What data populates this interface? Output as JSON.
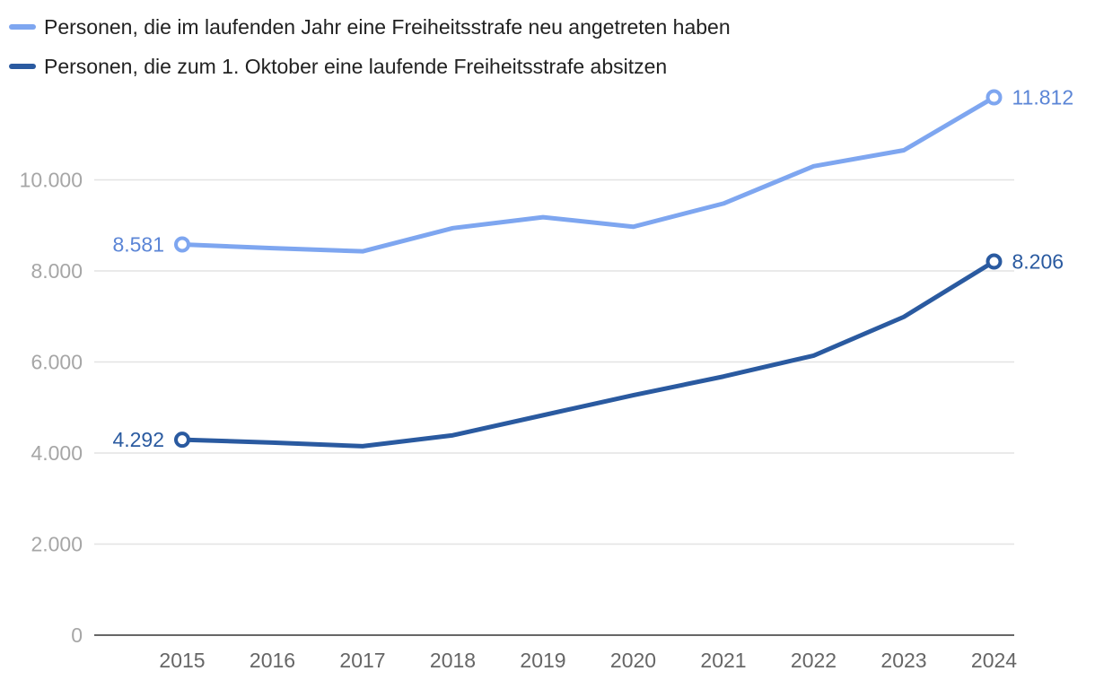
{
  "chart_data": {
    "type": "line",
    "categories": [
      "2015",
      "2016",
      "2017",
      "2018",
      "2019",
      "2020",
      "2021",
      "2022",
      "2023",
      "2024"
    ],
    "series": [
      {
        "name": "Personen, die im laufenden Jahr eine Freiheitsstrafe neu angetreten haben",
        "color": "#7ea6f0",
        "label_color": "#5b85d6",
        "values": [
          8581,
          8500,
          8430,
          8940,
          9180,
          8970,
          9480,
          10300,
          10650,
          11812
        ],
        "start_label": "8.581",
        "end_label": "11.812"
      },
      {
        "name": "Personen, die zum 1. Oktober eine laufende Freiheitsstrafe absitzen",
        "color": "#2a5aa0",
        "label_color": "#2a5aa0",
        "values": [
          4292,
          4230,
          4150,
          4390,
          4830,
          5270,
          5680,
          6140,
          6990,
          8206
        ],
        "start_label": "4.292",
        "end_label": "8.206"
      }
    ],
    "yticks": [
      0,
      2000,
      4000,
      6000,
      8000,
      10000
    ],
    "ytick_labels": [
      "0",
      "2.000",
      "4.000",
      "6.000",
      "8.000",
      "10.000"
    ],
    "ylim": [
      0,
      12000
    ],
    "grid": true,
    "legend": "top-left",
    "title": "",
    "xlabel": "",
    "ylabel": ""
  }
}
